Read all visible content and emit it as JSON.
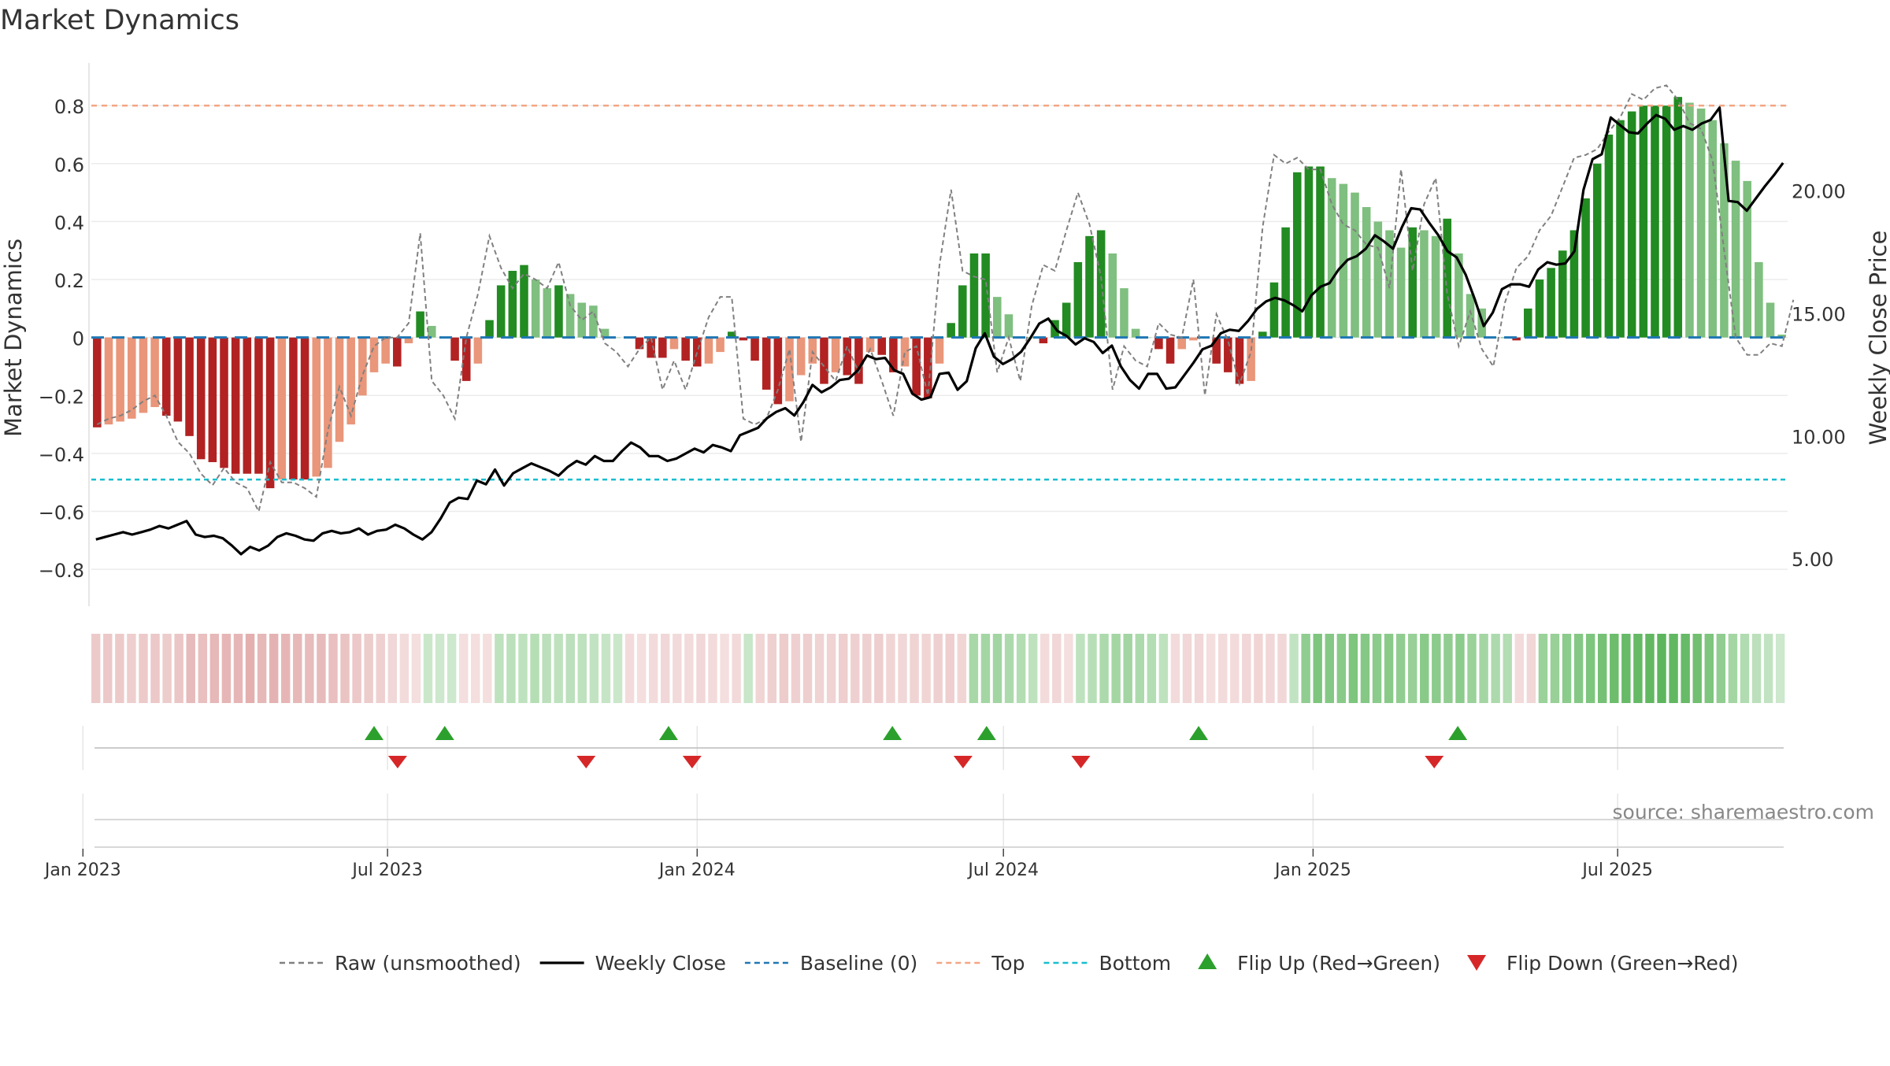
{
  "title": "Market Dynamics",
  "source_note": "source: sharemaestro.com",
  "colors": {
    "strong_green": "#228b22",
    "light_green": "#7fbf7f",
    "strong_red": "#b22222",
    "light_red": "#e9967a",
    "weekly_close": "#000000",
    "raw": "#808080",
    "baseline": "#1f77b4",
    "top": "#f4a582",
    "bottom": "#17becf",
    "flip_up": "#2ca02c",
    "flip_down": "#d62728",
    "grid": "#ececec"
  },
  "chart_data": {
    "type": "bar",
    "title": "Market Dynamics",
    "ylabel": "Market Dynamics",
    "y2label": "Weekly Close Price",
    "ylim": [
      -0.9,
      0.92
    ],
    "y2lim": [
      3.4,
      24.9
    ],
    "yticks": [
      "0.8",
      "0.6",
      "0.4",
      "0.2",
      "0",
      "−0.2",
      "−0.4",
      "−0.6",
      "−0.8"
    ],
    "y2ticks": [
      "20.00",
      "15.00",
      "10.00",
      "5.00"
    ],
    "xticks": [
      "Jan 2023",
      "Jul 2023",
      "Jan 2024",
      "Jul 2024",
      "Jan 2025",
      "Jul 2025"
    ],
    "x_start": "2023-01-06",
    "x_end": "2025-10-10",
    "grid": true,
    "legend_position": "bottom",
    "series": [
      {
        "name": "Market Dynamics",
        "kind": "bar",
        "colors_by": "phase",
        "values": [
          -0.31,
          -0.3,
          -0.29,
          -0.28,
          -0.26,
          -0.24,
          -0.27,
          -0.29,
          -0.34,
          -0.42,
          -0.43,
          -0.45,
          -0.47,
          -0.47,
          -0.47,
          -0.52,
          -0.49,
          -0.49,
          -0.49,
          -0.48,
          -0.45,
          -0.36,
          -0.3,
          -0.2,
          -0.12,
          -0.09,
          -0.1,
          -0.02,
          0.09,
          0.04,
          0.0,
          -0.08,
          -0.15,
          -0.09,
          0.06,
          0.18,
          0.23,
          0.25,
          0.2,
          0.17,
          0.18,
          0.15,
          0.12,
          0.11,
          0.03,
          0.0,
          0.0,
          -0.04,
          -0.07,
          -0.07,
          -0.04,
          -0.08,
          -0.1,
          -0.09,
          -0.05,
          0.02,
          -0.01,
          -0.08,
          -0.18,
          -0.23,
          -0.22,
          -0.13,
          -0.09,
          -0.16,
          -0.12,
          -0.13,
          -0.16,
          -0.05,
          -0.06,
          -0.12,
          -0.1,
          -0.2,
          -0.21,
          -0.09,
          0.05,
          0.18,
          0.29,
          0.29,
          0.14,
          0.08,
          0.0,
          0.0,
          -0.02,
          0.06,
          0.12,
          0.26,
          0.35,
          0.37,
          0.29,
          0.17,
          0.03,
          0.0,
          -0.04,
          -0.09,
          -0.04,
          -0.01,
          0.0,
          -0.09,
          -0.12,
          -0.16,
          -0.15,
          0.02,
          0.19,
          0.38,
          0.57,
          0.59,
          0.59,
          0.55,
          0.53,
          0.5,
          0.45,
          0.4,
          0.37,
          0.31,
          0.38,
          0.37,
          0.35,
          0.41,
          0.29,
          0.15,
          0.1,
          0.0,
          0.0,
          -0.01,
          0.1,
          0.2,
          0.24,
          0.3,
          0.37,
          0.48,
          0.6,
          0.7,
          0.75,
          0.78,
          0.8,
          0.8,
          0.8,
          0.83,
          0.81,
          0.79,
          0.75,
          0.67,
          0.61,
          0.54,
          0.26,
          0.12,
          0.01
        ]
      },
      {
        "name": "Raw (unsmoothed)",
        "kind": "line",
        "values": [
          -0.3,
          -0.28,
          -0.27,
          -0.25,
          -0.22,
          -0.2,
          -0.27,
          -0.36,
          -0.4,
          -0.47,
          -0.51,
          -0.45,
          -0.5,
          -0.52,
          -0.6,
          -0.43,
          -0.5,
          -0.5,
          -0.52,
          -0.55,
          -0.32,
          -0.17,
          -0.27,
          -0.13,
          -0.03,
          0.0,
          0.0,
          0.05,
          0.36,
          -0.15,
          -0.2,
          -0.28,
          0.0,
          0.15,
          0.35,
          0.24,
          0.17,
          0.22,
          0.2,
          0.17,
          0.26,
          0.11,
          0.06,
          0.09,
          -0.02,
          -0.05,
          -0.1,
          -0.04,
          0.0,
          -0.18,
          -0.08,
          -0.18,
          -0.05,
          0.07,
          0.14,
          0.14,
          -0.28,
          -0.3,
          -0.28,
          -0.18,
          -0.04,
          -0.36,
          -0.05,
          -0.1,
          -0.15,
          -0.03,
          -0.12,
          -0.04,
          -0.15,
          -0.27,
          -0.05,
          -0.03,
          -0.2,
          0.25,
          0.51,
          0.23,
          0.21,
          0.2,
          -0.12,
          0.0,
          -0.15,
          0.11,
          0.25,
          0.23,
          0.37,
          0.5,
          0.39,
          0.21,
          -0.18,
          -0.03,
          -0.08,
          -0.1,
          0.05,
          0.01,
          0.0,
          0.2,
          -0.2,
          0.08,
          -0.01,
          -0.16,
          -0.05,
          0.38,
          0.63,
          0.6,
          0.62,
          0.58,
          0.58,
          0.46,
          0.39,
          0.37,
          0.32,
          0.31,
          0.17,
          0.58,
          0.23,
          0.46,
          0.55,
          0.15,
          -0.03,
          0.09,
          -0.04,
          -0.1,
          0.12,
          0.24,
          0.28,
          0.37,
          0.42,
          0.52,
          0.62,
          0.63,
          0.65,
          0.71,
          0.76,
          0.84,
          0.82,
          0.86,
          0.87,
          0.82,
          0.74,
          0.72,
          0.61,
          0.3,
          0.0,
          -0.06,
          -0.06,
          -0.02,
          -0.03,
          0.13
        ]
      },
      {
        "name": "Weekly Close",
        "kind": "line",
        "axis": "right",
        "values": [
          5.8,
          5.9,
          6.0,
          6.1,
          6.0,
          6.1,
          6.2,
          6.35,
          6.25,
          6.4,
          6.55,
          6.0,
          5.9,
          5.95,
          5.85,
          5.55,
          5.2,
          5.5,
          5.35,
          5.55,
          5.9,
          6.05,
          5.95,
          5.8,
          5.75,
          6.05,
          6.15,
          6.05,
          6.1,
          6.25,
          6.0,
          6.15,
          6.2,
          6.4,
          6.25,
          6.0,
          5.8,
          6.1,
          6.65,
          7.3,
          7.5,
          7.45,
          8.2,
          8.05,
          8.65,
          8.0,
          8.5,
          8.7,
          8.9,
          8.75,
          8.6,
          8.4,
          8.75,
          9.0,
          8.85,
          9.2,
          9.0,
          9.0,
          9.4,
          9.75,
          9.55,
          9.2,
          9.2,
          9.0,
          9.1,
          9.3,
          9.5,
          9.35,
          9.65,
          9.55,
          9.4,
          10.05,
          10.2,
          10.35,
          10.75,
          11.0,
          11.15,
          10.85,
          11.4,
          12.1,
          11.8,
          12.0,
          12.3,
          12.35,
          12.7,
          13.3,
          13.15,
          13.2,
          12.7,
          12.55,
          11.75,
          11.5,
          11.6,
          12.55,
          12.6,
          11.9,
          12.25,
          13.6,
          14.2,
          13.25,
          12.95,
          13.15,
          13.45,
          14.0,
          14.6,
          14.8,
          14.3,
          14.1,
          13.75,
          14.0,
          13.85,
          13.4,
          13.7,
          12.85,
          12.3,
          11.95,
          12.55,
          12.55,
          11.95,
          12.0,
          12.5,
          13.0,
          13.55,
          13.7,
          14.2,
          14.35,
          14.3,
          14.7,
          15.2,
          15.5,
          15.65,
          15.55,
          15.35,
          15.1,
          15.75,
          16.1,
          16.25,
          16.8,
          17.2,
          17.35,
          17.65,
          18.2,
          17.95,
          17.65,
          18.55,
          19.3,
          19.25,
          18.7,
          18.2,
          17.55,
          17.3,
          16.6,
          15.6,
          14.5,
          15.05,
          16.0,
          16.2,
          16.2,
          16.1,
          16.8,
          17.1,
          17.0,
          17.05,
          17.55,
          20.05,
          21.3,
          21.5,
          23.0,
          22.7,
          22.4,
          22.35,
          22.75,
          23.1,
          22.95,
          22.5,
          22.65,
          22.5,
          22.75,
          22.9,
          23.4,
          19.6,
          19.55,
          19.2,
          19.7,
          20.2,
          20.65,
          21.15
        ]
      },
      {
        "name": "Baseline (0)",
        "kind": "hline",
        "value": 0
      },
      {
        "name": "Top",
        "kind": "hline",
        "value": 0.8
      },
      {
        "name": "Bottom",
        "kind": "hline",
        "value": -0.49
      },
      {
        "name": "Flip Up (Red→Green)",
        "kind": "marker",
        "dates": [
          "2023-06-23",
          "2023-08-04",
          "2023-12-15",
          "2024-04-26",
          "2024-06-21",
          "2024-10-25",
          "2025-03-28"
        ]
      },
      {
        "name": "Flip Down (Green→Red)",
        "kind": "marker",
        "dates": [
          "2023-07-07",
          "2023-10-27",
          "2023-12-29",
          "2024-06-07",
          "2024-08-16",
          "2025-03-14"
        ]
      }
    ],
    "strip_panel": {
      "values": [
        -0.25,
        -0.27,
        -0.25,
        -0.22,
        -0.25,
        -0.27,
        -0.24,
        -0.28,
        -0.36,
        -0.33,
        -0.38,
        -0.4,
        -0.4,
        -0.45,
        -0.39,
        -0.44,
        -0.4,
        -0.38,
        -0.35,
        -0.36,
        -0.33,
        -0.3,
        -0.26,
        -0.23,
        -0.2,
        -0.15,
        -0.12,
        -0.1,
        0.14,
        0.12,
        0.12,
        -0.1,
        -0.1,
        -0.1,
        0.2,
        0.22,
        0.2,
        0.25,
        0.22,
        0.2,
        0.22,
        0.2,
        0.18,
        0.16,
        0.14,
        -0.12,
        -0.1,
        -0.12,
        -0.14,
        -0.13,
        -0.12,
        -0.14,
        -0.12,
        -0.1,
        -0.13,
        0.15,
        -0.17,
        -0.2,
        -0.23,
        -0.2,
        -0.22,
        -0.19,
        -0.18,
        -0.22,
        -0.2,
        -0.2,
        -0.22,
        -0.16,
        -0.14,
        -0.18,
        -0.16,
        -0.2,
        -0.22,
        -0.16,
        0.32,
        0.34,
        0.36,
        0.3,
        0.26,
        0.2,
        -0.12,
        -0.14,
        -0.1,
        0.2,
        0.24,
        0.3,
        0.34,
        0.36,
        0.3,
        0.26,
        0.2,
        -0.12,
        -0.14,
        -0.14,
        -0.1,
        -0.12,
        -0.12,
        -0.14,
        -0.16,
        -0.15,
        -0.14,
        0.18,
        0.45,
        0.55,
        0.52,
        0.5,
        0.55,
        0.52,
        0.48,
        0.5,
        0.45,
        0.42,
        0.5,
        0.48,
        0.45,
        0.48,
        0.4,
        0.35,
        0.3,
        0.26,
        -0.12,
        -0.14,
        0.4,
        0.42,
        0.48,
        0.52,
        0.55,
        0.6,
        0.65,
        0.68,
        0.7,
        0.72,
        0.74,
        0.72,
        0.68,
        0.62,
        0.55,
        0.45,
        0.35,
        0.28,
        0.22,
        0.18,
        0.12
      ]
    }
  },
  "legend": [
    {
      "label": "Raw (unsmoothed)",
      "marker": "dashed-line",
      "color": "#808080"
    },
    {
      "label": "Weekly Close",
      "marker": "solid-line",
      "color": "#000000"
    },
    {
      "label": "Baseline (0)",
      "marker": "dashed-line",
      "color": "#1f77b4"
    },
    {
      "label": "Top",
      "marker": "dashed-line",
      "color": "#f4a582"
    },
    {
      "label": "Bottom",
      "marker": "dashed-line",
      "color": "#17becf"
    },
    {
      "label": "Flip Up (Red→Green)",
      "marker": "up-triangle",
      "color": "#2ca02c"
    },
    {
      "label": "Flip Down (Green→Red)",
      "marker": "down-triangle",
      "color": "#d62728"
    }
  ]
}
